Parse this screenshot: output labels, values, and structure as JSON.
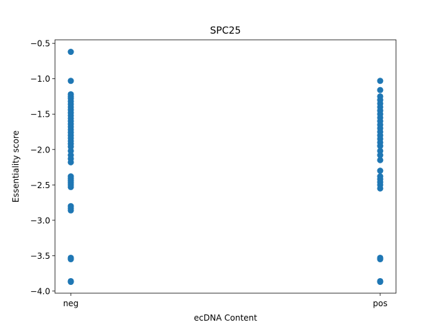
{
  "chart_data": {
    "type": "scatter",
    "title": "SPC25",
    "xlabel": "ecDNA Content",
    "ylabel": "Essentiality score",
    "categories": [
      "neg",
      "pos"
    ],
    "ylim": [
      -4.03,
      -0.45
    ],
    "yticks": [
      -0.5,
      -1.0,
      -1.5,
      -2.0,
      -2.5,
      -3.0,
      -3.5,
      -4.0
    ],
    "ytick_labels": [
      "−0.5",
      "−1.0",
      "−1.5",
      "−2.0",
      "−2.5",
      "−3.0",
      "−3.5",
      "−4.0"
    ],
    "grid": false,
    "marker_color": "#1f77b4",
    "series": [
      {
        "category": "neg",
        "y": [
          -0.62,
          -1.03,
          -1.22,
          -1.25,
          -1.28,
          -1.32,
          -1.36,
          -1.4,
          -1.44,
          -1.48,
          -1.52,
          -1.56,
          -1.6,
          -1.64,
          -1.68,
          -1.72,
          -1.76,
          -1.8,
          -1.84,
          -1.88,
          -1.92,
          -1.96,
          -2.02,
          -2.08,
          -2.13,
          -2.18,
          -2.38,
          -2.41,
          -2.44,
          -2.47,
          -2.5,
          -2.53,
          -2.8,
          -2.83,
          -2.86,
          -3.53,
          -3.55,
          -3.86,
          -3.87
        ]
      },
      {
        "category": "pos",
        "y": [
          -1.03,
          -1.16,
          -1.25,
          -1.3,
          -1.35,
          -1.4,
          -1.45,
          -1.5,
          -1.55,
          -1.6,
          -1.65,
          -1.7,
          -1.75,
          -1.8,
          -1.85,
          -1.9,
          -1.95,
          -2.02,
          -2.08,
          -2.15,
          -2.3,
          -2.38,
          -2.42,
          -2.46,
          -2.5,
          -2.55,
          -3.53,
          -3.55,
          -3.86,
          -3.87
        ]
      }
    ]
  }
}
